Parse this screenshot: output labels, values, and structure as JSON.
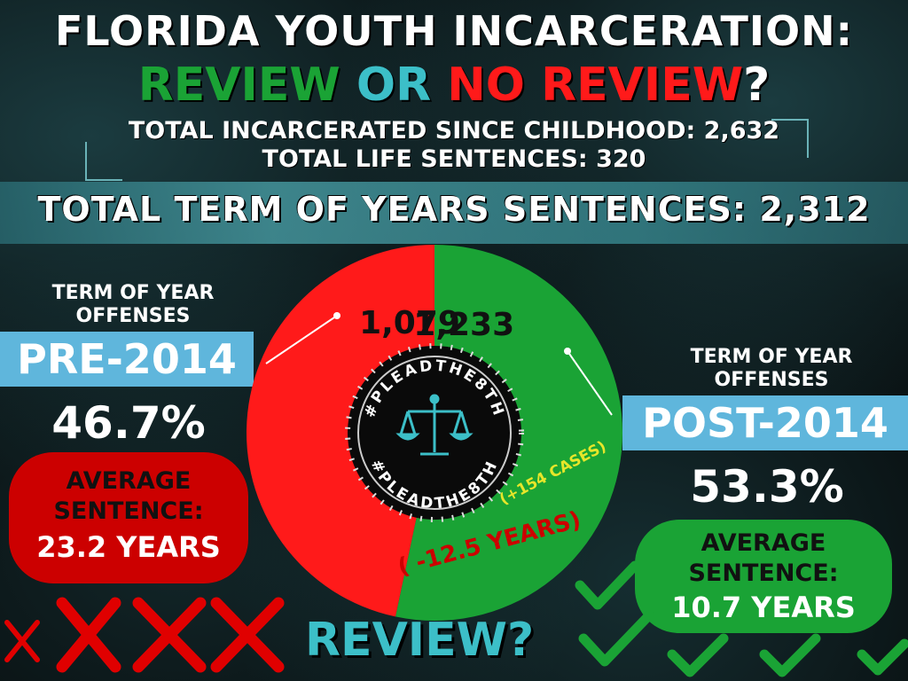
{
  "header": {
    "title_line1": "FLORIDA YOUTH INCARCERATION:",
    "title_review": "REVIEW",
    "title_or": "OR",
    "title_no_review": "NO REVIEW",
    "title_q": "?",
    "total_incarcerated": "TOTAL INCARCERATED SINCE CHILDHOOD: 2,632",
    "total_life": "TOTAL LIFE SENTENCES: 320",
    "total_term": "TOTAL TERM OF YEARS SENTENCES: 2,312"
  },
  "left": {
    "label": "TERM OF YEAR OFFENSES",
    "tag": "PRE-2014",
    "percent": "46.7%",
    "avg_label": "AVERAGE SENTENCE:",
    "avg_value": "23.2 YEARS"
  },
  "right": {
    "label": "TERM OF YEAR OFFENSES",
    "tag": "POST-2014",
    "percent": "53.3%",
    "avg_label": "AVERAGE SENTENCE:",
    "avg_value": "10.7 YEARS"
  },
  "center": {
    "logo_text": "#PLEADTHE8TH",
    "cases_note": "(+154 CASES)",
    "years_note": "( -12.5 YEARS)"
  },
  "footer": {
    "review": "REVIEW?"
  },
  "colors": {
    "pre": "#ff1a1a",
    "post": "#1aa335",
    "accent": "#3cbfc8",
    "tag_bg": "#5fb6dc"
  },
  "chart_data": {
    "type": "pie",
    "categories": [
      "PRE-2014",
      "POST-2014"
    ],
    "values": [
      1079,
      1233
    ],
    "value_labels": [
      "1,079",
      "1,233"
    ],
    "percent_labels": [
      "46.7%",
      "53.3%"
    ]
  }
}
